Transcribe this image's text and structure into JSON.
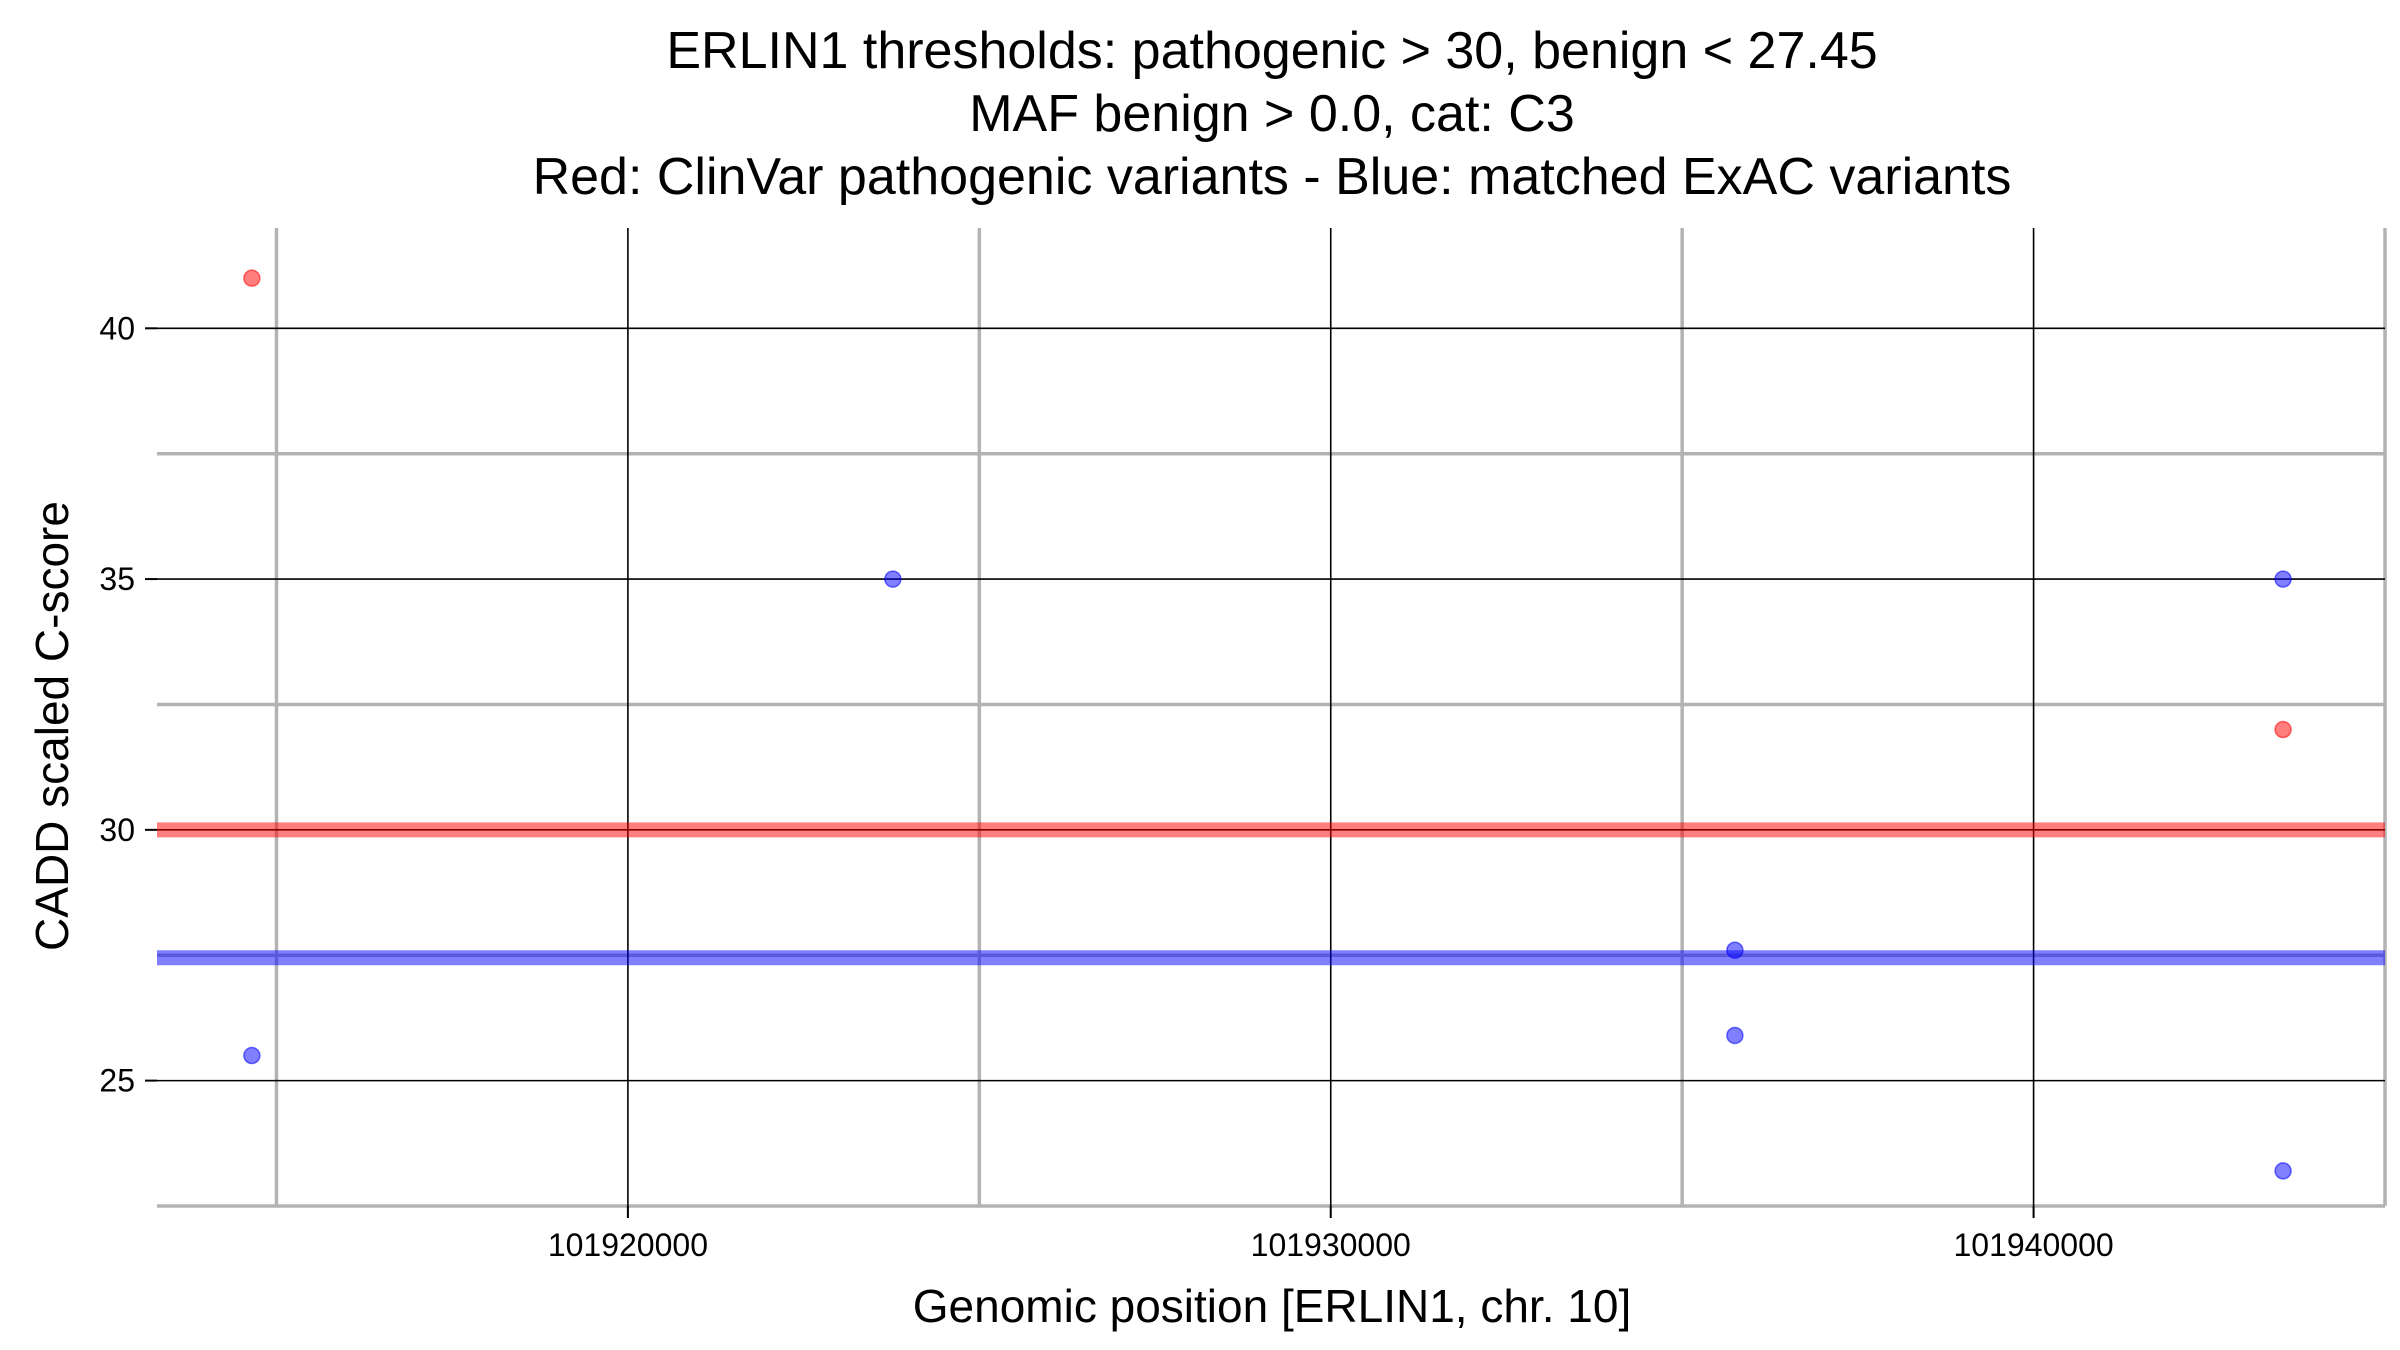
{
  "chart_data": {
    "type": "scatter",
    "title_lines": [
      "ERLIN1 thresholds: pathogenic > 30, benign < 27.45",
      "MAF benign > 0.0, cat: C3",
      "Red: ClinVar pathogenic variants - Blue: matched ExAC variants"
    ],
    "xlabel": "Genomic position [ERLIN1, chr. 10]",
    "ylabel": "CADD scaled C-score",
    "xlim": [
      101913300,
      101945000
    ],
    "ylim": [
      22.5,
      42.0
    ],
    "x_major_ticks": [
      101920000,
      101930000,
      101940000
    ],
    "x_tick_labels": [
      "101920000",
      "101930000",
      "101940000"
    ],
    "x_minor_ticks": [
      101915000,
      101925000,
      101935000,
      101945000
    ],
    "y_major_ticks": [
      25,
      30,
      35,
      40
    ],
    "y_tick_labels": [
      "25",
      "30",
      "35",
      "40"
    ],
    "y_minor_ticks": [
      22.5,
      27.5,
      32.5,
      37.5
    ],
    "grid": true,
    "hlines": [
      {
        "y": 30.0,
        "color": "#ff0000"
      },
      {
        "y": 27.45,
        "color": "#0000ff"
      }
    ],
    "series": [
      {
        "color": "#ff0000",
        "points": [
          {
            "x": 101914650,
            "y": 41.0
          },
          {
            "x": 101943550,
            "y": 32.0
          }
        ]
      },
      {
        "color": "#0000ff",
        "points": [
          {
            "x": 101914650,
            "y": 25.5
          },
          {
            "x": 101923770,
            "y": 35.0
          },
          {
            "x": 101935750,
            "y": 27.6
          },
          {
            "x": 101935750,
            "y": 25.9
          },
          {
            "x": 101943550,
            "y": 35.0
          },
          {
            "x": 101943550,
            "y": 23.2
          }
        ]
      }
    ]
  }
}
